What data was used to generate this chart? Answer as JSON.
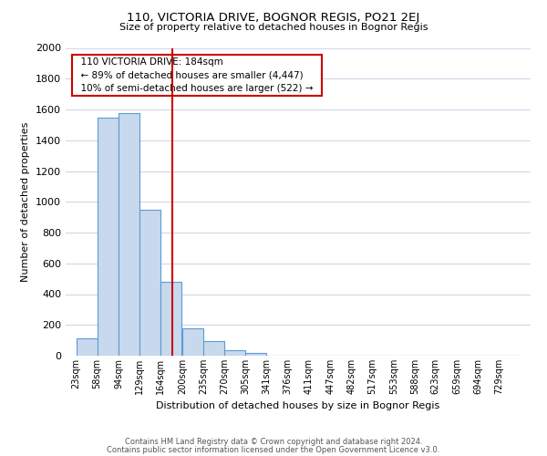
{
  "title": "110, VICTORIA DRIVE, BOGNOR REGIS, PO21 2EJ",
  "subtitle": "Size of property relative to detached houses in Bognor Regis",
  "xlabel": "Distribution of detached houses by size in Bognor Regis",
  "ylabel": "Number of detached properties",
  "bin_labels": [
    "23sqm",
    "58sqm",
    "94sqm",
    "129sqm",
    "164sqm",
    "200sqm",
    "235sqm",
    "270sqm",
    "305sqm",
    "341sqm",
    "376sqm",
    "411sqm",
    "447sqm",
    "482sqm",
    "517sqm",
    "553sqm",
    "588sqm",
    "623sqm",
    "659sqm",
    "694sqm",
    "729sqm"
  ],
  "bar_values": [
    110,
    1545,
    1575,
    950,
    480,
    180,
    95,
    35,
    20,
    0,
    0,
    0,
    0,
    0,
    0,
    0,
    0,
    0,
    0,
    0,
    0
  ],
  "bar_color": "#c8d9ed",
  "bar_edge_color": "#5b9bd5",
  "vline_color": "#cc0000",
  "annotation_title": "110 VICTORIA DRIVE: 184sqm",
  "annotation_line1": "← 89% of detached houses are smaller (4,447)",
  "annotation_line2": "10% of semi-detached houses are larger (522) →",
  "annotation_box_color": "#ffffff",
  "annotation_box_edge": "#cc0000",
  "ylim": [
    0,
    2000
  ],
  "yticks": [
    0,
    200,
    400,
    600,
    800,
    1000,
    1200,
    1400,
    1600,
    1800,
    2000
  ],
  "bin_edges": [
    23,
    58,
    94,
    129,
    164,
    200,
    235,
    270,
    305,
    341,
    376,
    411,
    447,
    482,
    517,
    553,
    588,
    623,
    659,
    694,
    729
  ],
  "footer_line1": "Contains HM Land Registry data © Crown copyright and database right 2024.",
  "footer_line2": "Contains public sector information licensed under the Open Government Licence v3.0.",
  "bg_color": "#ffffff",
  "grid_color": "#d0d8e8",
  "vline_value": 184,
  "bin_width": 35
}
